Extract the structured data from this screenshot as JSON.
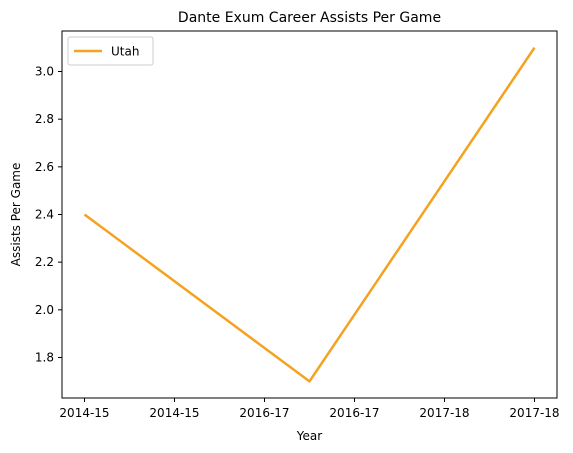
{
  "chart_data": {
    "type": "line",
    "title": "Dante Exum Career Assists Per Game",
    "xlabel": "Year",
    "ylabel": "Assists Per Game",
    "x_tick_labels": [
      "2014-15",
      "2014-15",
      "2016-17",
      "2016-17",
      "2017-18",
      "2017-18"
    ],
    "y_ticks": [
      1.8,
      2.0,
      2.2,
      2.4,
      2.6,
      2.8,
      3.0
    ],
    "ylim": [
      1.63,
      3.17
    ],
    "grid": false,
    "legend_position": "upper-left",
    "series": [
      {
        "name": "Utah",
        "color": "#F4A21F",
        "points": [
          {
            "x": "2014-15",
            "y": 2.4
          },
          {
            "x": "2016-17",
            "y": 1.7
          },
          {
            "x": "2017-18",
            "y": 3.1
          }
        ]
      }
    ]
  }
}
